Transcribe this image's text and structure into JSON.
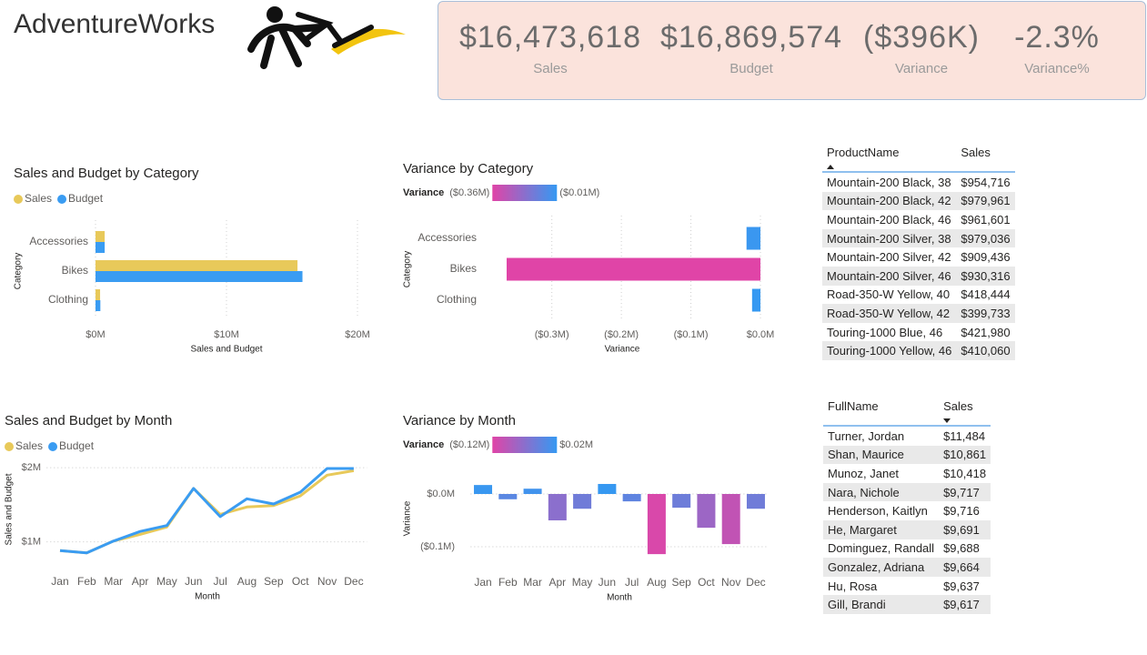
{
  "header": {
    "title": "AdventureWorks"
  },
  "kpis": [
    {
      "value": "$16,473,618",
      "label": "Sales"
    },
    {
      "value": "$16,869,574",
      "label": "Budget"
    },
    {
      "value": "($396K)",
      "label": "Variance"
    },
    {
      "value": "-2.3%",
      "label": "Variance%"
    }
  ],
  "chart_data": [
    {
      "type": "bar",
      "orientation": "horizontal",
      "title": "Sales and Budget by Category",
      "x_label": "Sales and Budget",
      "y_label": "Category",
      "categories": [
        "Accessories",
        "Bikes",
        "Clothing"
      ],
      "series": [
        {
          "name": "Sales",
          "color": "#e8c95a",
          "values": [
            700000,
            15420000,
            350000
          ]
        },
        {
          "name": "Budget",
          "color": "#3a9cf2",
          "values": [
            700000,
            15800000,
            370000
          ]
        }
      ],
      "xlim": [
        0,
        20000000
      ],
      "xticks": [
        {
          "value": 0,
          "label": "$0M"
        },
        {
          "value": 10000000,
          "label": "$10M"
        },
        {
          "value": 20000000,
          "label": "$20M"
        }
      ],
      "grid": true,
      "legend": "top-left"
    },
    {
      "type": "bar",
      "orientation": "horizontal",
      "title": "Variance by Category",
      "x_label": "Variance",
      "y_label": "Category",
      "categories": [
        "Accessories",
        "Bikes",
        "Clothing"
      ],
      "values": [
        -20000,
        -365000,
        -12000
      ],
      "color_scale": {
        "title": "Variance",
        "min": {
          "value": -360000,
          "label": "($0.36M)"
        },
        "max": {
          "value": -10000,
          "label": "($0.01M)"
        },
        "colors": [
          "#e044a7",
          "#3599f2"
        ]
      },
      "xlim": [
        -365000,
        0
      ],
      "xticks": [
        {
          "value": -300000,
          "label": "($0.3M)"
        },
        {
          "value": -200000,
          "label": "($0.2M)"
        },
        {
          "value": -100000,
          "label": "($0.1M)"
        },
        {
          "value": 0,
          "label": "$0.0M"
        }
      ],
      "grid": true
    },
    {
      "type": "line",
      "title": "Sales and Budget by Month",
      "x_label": "Month",
      "y_label": "Sales and Budget",
      "categories": [
        "Jan",
        "Feb",
        "Mar",
        "Apr",
        "May",
        "Jun",
        "Jul",
        "Aug",
        "Sep",
        "Oct",
        "Nov",
        "Dec"
      ],
      "series": [
        {
          "name": "Sales",
          "color": "#e8c95a",
          "values": [
            880000,
            850000,
            1010000,
            1100000,
            1200000,
            1720000,
            1370000,
            1470000,
            1490000,
            1620000,
            1900000,
            1960000
          ]
        },
        {
          "name": "Budget",
          "color": "#3a9cf2",
          "values": [
            880000,
            850000,
            1010000,
            1140000,
            1220000,
            1720000,
            1340000,
            1580000,
            1510000,
            1670000,
            1990000,
            1990000
          ]
        }
      ],
      "ylim": [
        700000,
        2100000
      ],
      "yticks": [
        {
          "value": 1000000,
          "label": "$1M"
        },
        {
          "value": 2000000,
          "label": "$2M"
        }
      ],
      "grid": true,
      "legend": "top-left"
    },
    {
      "type": "bar",
      "orientation": "vertical",
      "title": "Variance by Month",
      "x_label": "Month",
      "y_label": "Variance",
      "categories": [
        "Jan",
        "Feb",
        "Mar",
        "Apr",
        "May",
        "Jun",
        "Jul",
        "Aug",
        "Sep",
        "Oct",
        "Nov",
        "Dec"
      ],
      "values": [
        17000,
        -10000,
        10000,
        -50000,
        -28000,
        19000,
        -14000,
        -114000,
        -26000,
        -64000,
        -95000,
        -28000
      ],
      "color_scale": {
        "title": "Variance",
        "min": {
          "value": -120000,
          "label": "($0.12M)"
        },
        "max": {
          "value": 20000,
          "label": "$0.02M"
        },
        "colors": [
          "#e044a7",
          "#3599f2"
        ]
      },
      "ylim": [
        -120000,
        20000
      ],
      "yticks": [
        {
          "value": -100000,
          "label": "($0.1M)"
        },
        {
          "value": 0,
          "label": "$0.0M"
        }
      ],
      "grid": true
    }
  ],
  "tables": [
    {
      "columns": [
        "ProductName",
        "Sales"
      ],
      "sort": {
        "column": 0,
        "direction": "ascending"
      },
      "rows": [
        [
          "Mountain-200 Black, 38",
          "$954,716"
        ],
        [
          "Mountain-200 Black, 42",
          "$979,961"
        ],
        [
          "Mountain-200 Black, 46",
          "$961,601"
        ],
        [
          "Mountain-200 Silver, 38",
          "$979,036"
        ],
        [
          "Mountain-200 Silver, 42",
          "$909,436"
        ],
        [
          "Mountain-200 Silver, 46",
          "$930,316"
        ],
        [
          "Road-350-W Yellow, 40",
          "$418,444"
        ],
        [
          "Road-350-W Yellow, 42",
          "$399,733"
        ],
        [
          "Touring-1000 Blue, 46",
          "$421,980"
        ],
        [
          "Touring-1000 Yellow, 46",
          "$410,060"
        ]
      ]
    },
    {
      "columns": [
        "FullName",
        "Sales"
      ],
      "sort": {
        "column": 1,
        "direction": "descending"
      },
      "rows": [
        [
          "Turner, Jordan",
          "$11,484"
        ],
        [
          "Shan, Maurice",
          "$10,861"
        ],
        [
          "Munoz, Janet",
          "$10,418"
        ],
        [
          "Nara, Nichole",
          "$9,717"
        ],
        [
          "Henderson, Kaitlyn",
          "$9,716"
        ],
        [
          "He, Margaret",
          "$9,691"
        ],
        [
          "Dominguez, Randall",
          "$9,688"
        ],
        [
          "Gonzalez, Adriana",
          "$9,664"
        ],
        [
          "Hu, Rosa",
          "$9,637"
        ],
        [
          "Gill, Brandi",
          "$9,617"
        ]
      ]
    }
  ]
}
